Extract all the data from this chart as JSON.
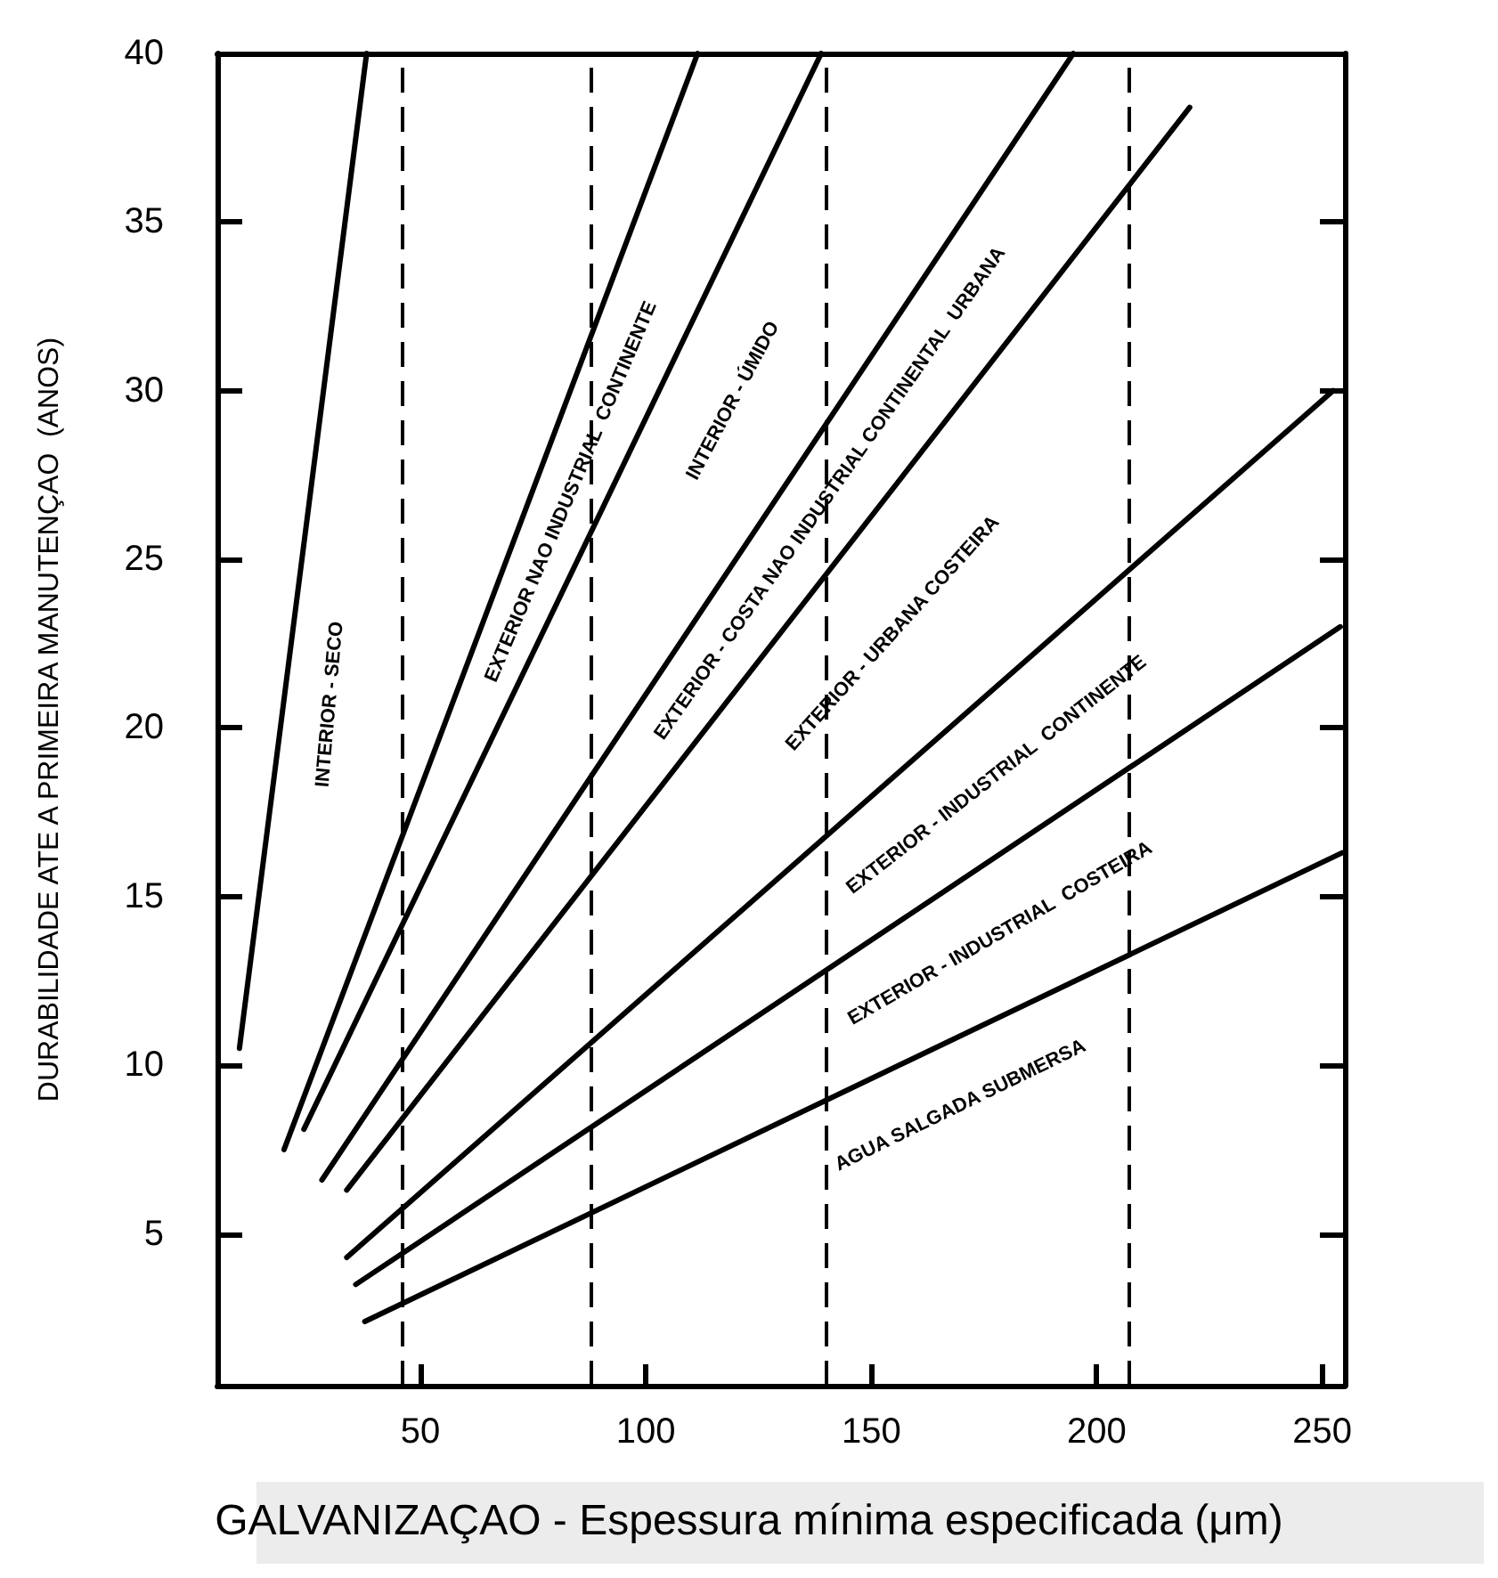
{
  "chart_data": {
    "type": "line",
    "xlabel": "GALVANIZAÇAO - Espessura mínima especificada (μm)",
    "ylabel": "DURABILIDADE ATE A PRIMEIRA MANUTENÇAO  (ANOS)",
    "xlim": [
      5,
      255
    ],
    "ylim": [
      0.5,
      40
    ],
    "xticks": [
      50,
      100,
      150,
      200,
      250
    ],
    "yticks": [
      5,
      10,
      15,
      20,
      25,
      30,
      35,
      40
    ],
    "grid": false,
    "marker": "none",
    "line_style": "solid",
    "series": [
      {
        "color": "#000000",
        "x": [
          9.9,
          38.1
        ],
        "values": [
          10.5,
          40
        ]
      },
      {
        "color": "#000000",
        "x": [
          19.8,
          111.5
        ],
        "values": [
          7.5,
          40
        ]
      },
      {
        "color": "#000000",
        "x": [
          24.2,
          138.9
        ],
        "values": [
          8.1,
          40
        ]
      },
      {
        "color": "#000000",
        "x": [
          28.2,
          194.8
        ],
        "values": [
          6.6,
          40
        ]
      },
      {
        "color": "#000000",
        "x": [
          33.7,
          220.6
        ],
        "values": [
          6.3,
          38.4
        ]
      },
      {
        "color": "#000000",
        "x": [
          33.7,
          252.4
        ],
        "values": [
          4.3,
          30
        ]
      },
      {
        "color": "#000000",
        "x": [
          35.7,
          254
        ],
        "values": [
          3.5,
          23
        ]
      },
      {
        "color": "#000000",
        "x": [
          37.7,
          254.4
        ],
        "values": [
          2.4,
          16.3
        ]
      }
    ],
    "ref_lines": [
      {
        "axis": "x",
        "value": 46,
        "line_style": "dashed"
      },
      {
        "axis": "x",
        "value": 88,
        "line_style": "dashed"
      },
      {
        "axis": "x",
        "value": 140,
        "line_style": "dashed"
      },
      {
        "axis": "x",
        "value": 207,
        "line_style": "dashed"
      }
    ],
    "annotations": [
      "INTERIOR - SECO",
      "EXTERIOR NAO INDUSTRIAL  CONTINENTE",
      "INTERIOR - ÚMIDO",
      "EXTERIOR - COSTA NAO INDUSTRIAL CONTINENTAL  URBANA",
      "EXTERIOR - URBANA COSTEIRA",
      "EXTERIOR - INDUSTRIAL  CONTINENTE",
      "EXTERIOR - INDUSTRIAL  COSTEIRA",
      "AGUA SALGADA SUBMERSA"
    ]
  }
}
